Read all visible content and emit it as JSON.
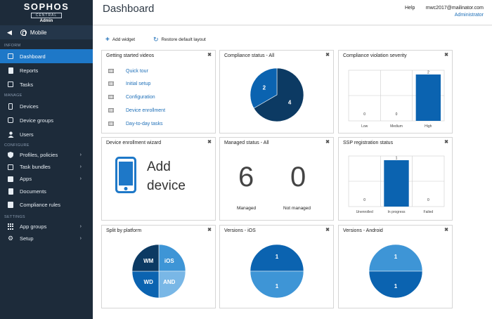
{
  "brand": {
    "name": "SOPHOS",
    "product": "CENTRAL",
    "role": "Admin"
  },
  "module": {
    "back_icon": "chevron-left-icon",
    "name": "Mobile",
    "icon": "mobile-icon"
  },
  "sidebar": {
    "sections": [
      {
        "heading": "INFORM",
        "items": [
          {
            "label": "Dashboard",
            "icon": "dashboard-icon",
            "active": true
          },
          {
            "label": "Reports",
            "icon": "reports-icon"
          },
          {
            "label": "Tasks",
            "icon": "tasks-icon"
          }
        ]
      },
      {
        "heading": "MANAGE",
        "items": [
          {
            "label": "Devices",
            "icon": "phone-icon"
          },
          {
            "label": "Device groups",
            "icon": "device-groups-icon"
          },
          {
            "label": "Users",
            "icon": "user-icon"
          }
        ]
      },
      {
        "heading": "CONFIGURE",
        "items": [
          {
            "label": "Profiles, policies",
            "icon": "shield-icon",
            "expandable": true
          },
          {
            "label": "Task bundles",
            "icon": "bundle-icon",
            "expandable": true
          },
          {
            "label": "Apps",
            "icon": "apps-icon",
            "expandable": true
          },
          {
            "label": "Documents",
            "icon": "document-icon"
          },
          {
            "label": "Compliance rules",
            "icon": "rules-icon"
          }
        ]
      },
      {
        "heading": "SETTINGS",
        "items": [
          {
            "label": "App groups",
            "icon": "app-groups-icon",
            "expandable": true
          },
          {
            "label": "Setup",
            "icon": "gear-icon",
            "expandable": true
          }
        ]
      }
    ]
  },
  "header": {
    "title": "Dashboard",
    "help": "Help",
    "user_email": "mwc2017@mailinator.com",
    "user_role": "Administrator"
  },
  "toolbar": {
    "add_widget": "Add widget",
    "restore_layout": "Restore default layout"
  },
  "widgets": {
    "videos": {
      "title": "Getting started videos",
      "items": [
        "Quick tour",
        "Initial setup",
        "Configuration",
        "Device enrollment",
        "Day-to-day tasks"
      ]
    },
    "compliance_status": {
      "title": "Compliance status - All"
    },
    "violation_severity": {
      "title": "Compliance violation severity"
    },
    "enrollment_wizard": {
      "title": "Device enrollment wizard",
      "text_line1": "Add",
      "text_line2": "device"
    },
    "managed_status": {
      "title": "Managed status - All",
      "managed_value": "6",
      "managed_label": "Managed",
      "not_managed_value": "0",
      "not_managed_label": "Not managed"
    },
    "ssp_status": {
      "title": "SSP registration status"
    },
    "platform": {
      "title": "Split by platform"
    },
    "versions_ios": {
      "title": "Versions - iOS"
    },
    "versions_android": {
      "title": "Versions - Android"
    },
    "close_symbol": "✖"
  },
  "colors": {
    "sidebar_bg": "#1d2b3a",
    "active": "#1e78c8",
    "pie_dark": "#0c3a63",
    "pie_mid": "#0b63b0",
    "pie_light": "#3e95d6",
    "pie_lighter": "#79b7e6",
    "bar": "#0b63b0"
  },
  "chart_data": [
    {
      "type": "pie",
      "title": "Compliance status - All",
      "slices": [
        {
          "label": "4",
          "value": 4,
          "color": "#0c3a63"
        },
        {
          "label": "2",
          "value": 2,
          "color": "#0b63b0"
        }
      ]
    },
    {
      "type": "bar",
      "title": "Compliance violation severity",
      "categories": [
        "Low",
        "Medium",
        "High"
      ],
      "values": [
        0,
        0,
        2
      ],
      "value_labels": [
        "0",
        "0",
        "2"
      ],
      "ylim": [
        0,
        2
      ]
    },
    {
      "type": "bar",
      "title": "SSP registration status",
      "categories": [
        "Unenrolled",
        "In progress",
        "Failed"
      ],
      "values": [
        0,
        1,
        0
      ],
      "value_labels": [
        "0",
        "1",
        "0"
      ],
      "ylim": [
        0,
        1
      ]
    },
    {
      "type": "pie",
      "title": "Split by platform",
      "slices": [
        {
          "label": "iOS",
          "value": 1,
          "color": "#3e95d6"
        },
        {
          "label": "AND",
          "value": 1,
          "color": "#79b7e6"
        },
        {
          "label": "WD",
          "value": 1,
          "color": "#0b63b0"
        },
        {
          "label": "WM",
          "value": 1,
          "color": "#0c3a63"
        }
      ]
    },
    {
      "type": "pie",
      "title": "Versions - iOS",
      "slices": [
        {
          "label": "1",
          "value": 1,
          "color": "#0b63b0"
        },
        {
          "label": "1",
          "value": 1,
          "color": "#3e95d6"
        }
      ]
    },
    {
      "type": "pie",
      "title": "Versions - Android",
      "slices": [
        {
          "label": "1",
          "value": 1,
          "color": "#3e95d6"
        },
        {
          "label": "1",
          "value": 1,
          "color": "#0b63b0"
        }
      ]
    }
  ]
}
